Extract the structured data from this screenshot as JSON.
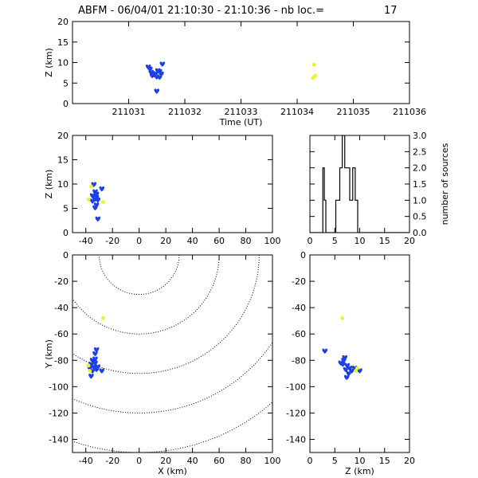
{
  "title": "ABFM - 06/04/01 21:10:30 - 21:10:36 - nb loc.=",
  "count": "17",
  "colors": {
    "blue": "#1f3fe8",
    "yellow": "#e8f52a",
    "axis": "#000000"
  },
  "chart_data": [
    {
      "id": "time_height",
      "type": "scatter",
      "xlabel": "Time (UT)",
      "ylabel": "Z (km)",
      "xlim": [
        211030,
        211036
      ],
      "ylim": [
        0,
        20
      ],
      "xticks": [
        "211031",
        "211032",
        "211033",
        "211034",
        "211035",
        "211036"
      ],
      "yticks": [
        "0",
        "5",
        "10",
        "15",
        "20"
      ],
      "series": [
        {
          "color": "blue",
          "points": [
            [
              211031.35,
              8.9
            ],
            [
              211031.4,
              7.6
            ],
            [
              211031.45,
              7.0
            ],
            [
              211031.5,
              6.5
            ],
            [
              211031.55,
              7.8
            ],
            [
              211031.6,
              9.6
            ],
            [
              211031.5,
              3.0
            ],
            [
              211031.42,
              6.8
            ],
            [
              211031.48,
              7.3
            ],
            [
              211031.58,
              7.2
            ],
            [
              211031.38,
              8.4
            ],
            [
              211031.52,
              8.0
            ],
            [
              211031.55,
              6.4
            ]
          ]
        },
        {
          "color": "yellow",
          "points": [
            [
              211034.3,
              9.5
            ],
            [
              211034.32,
              6.8
            ],
            [
              211034.28,
              6.3
            ]
          ]
        }
      ]
    },
    {
      "id": "x_height",
      "type": "scatter",
      "xlabel": "",
      "ylabel": "Z (km)",
      "xlim": [
        -50,
        100
      ],
      "ylim": [
        0,
        20
      ],
      "xticks": [
        "-40",
        "-20",
        "0",
        "20",
        "40",
        "60",
        "80",
        "100"
      ],
      "yticks": [
        "0",
        "5",
        "10",
        "15",
        "20"
      ],
      "series": [
        {
          "color": "blue",
          "points": [
            [
              -34,
              9.9
            ],
            [
              -33,
              8.4
            ],
            [
              -32,
              7.9
            ],
            [
              -34,
              7.3
            ],
            [
              -33,
              6.9
            ],
            [
              -35,
              6.5
            ],
            [
              -31,
              6.7
            ],
            [
              -32,
              5.7
            ],
            [
              -33,
              5.1
            ],
            [
              -31,
              2.8
            ],
            [
              -28,
              9.0
            ],
            [
              -35,
              7.6
            ],
            [
              -32,
              7.2
            ]
          ]
        },
        {
          "color": "yellow",
          "points": [
            [
              -36,
              9.5
            ],
            [
              -38,
              6.8
            ],
            [
              -27,
              6.3
            ]
          ]
        }
      ]
    },
    {
      "id": "height_histogram",
      "type": "line",
      "xlabel": "",
      "ylabel": "number of sources",
      "xlim": [
        0,
        20
      ],
      "ylim": [
        0,
        3
      ],
      "xticks": [
        "0",
        "5",
        "10",
        "15",
        "20"
      ],
      "yticks": [
        "0.0",
        "0.5",
        "1.0",
        "1.5",
        "2.0",
        "2.5",
        "3.0"
      ],
      "x": [
        0,
        2.6,
        2.6,
        2.9,
        2.9,
        3.2,
        3.2,
        5.2,
        5.2,
        6.0,
        6.0,
        6.5,
        6.5,
        7.0,
        7.0,
        8.0,
        8.0,
        8.6,
        8.6,
        9.1,
        9.1,
        9.6,
        9.6,
        20
      ],
      "y": [
        0,
        0,
        2,
        2,
        1,
        1,
        0,
        0,
        1,
        1,
        2,
        2,
        3,
        3,
        2,
        2,
        1,
        1,
        2,
        2,
        1,
        1,
        0,
        0
      ]
    },
    {
      "id": "plan_view",
      "type": "scatter",
      "xlabel": "X (km)",
      "ylabel": "Y (km)",
      "xlim": [
        -50,
        100
      ],
      "ylim": [
        -150,
        0
      ],
      "xticks": [
        "-40",
        "-20",
        "0",
        "20",
        "40",
        "60",
        "80",
        "100"
      ],
      "yticks": [
        "-140",
        "-120",
        "-100",
        "-80",
        "-60",
        "-40",
        "-20",
        "0"
      ],
      "contour_radii_km": [
        30,
        60,
        90,
        120,
        150,
        180
      ],
      "series": [
        {
          "color": "blue",
          "points": [
            [
              -32,
              -72
            ],
            [
              -33,
              -75
            ],
            [
              -35,
              -80
            ],
            [
              -33,
              -82
            ],
            [
              -34,
              -85
            ],
            [
              -37,
              -86
            ],
            [
              -35,
              -88
            ],
            [
              -32,
              -87
            ],
            [
              -28,
              -88
            ],
            [
              -36,
              -92
            ],
            [
              -33,
              -79
            ],
            [
              -31,
              -85
            ],
            [
              -36,
              -83
            ]
          ]
        },
        {
          "color": "yellow",
          "points": [
            [
              -27,
              -48
            ],
            [
              -38,
              -84
            ],
            [
              -37,
              -88
            ]
          ]
        }
      ]
    },
    {
      "id": "height_y",
      "type": "scatter",
      "xlabel": "Z (km)",
      "ylabel": "",
      "xlim": [
        0,
        20
      ],
      "ylim": [
        -150,
        0
      ],
      "xticks": [
        "0",
        "5",
        "10",
        "15",
        "20"
      ],
      "yticks": [
        "-140",
        "-120",
        "-100",
        "-80",
        "-60",
        "-40",
        "-20",
        "0"
      ],
      "series": [
        {
          "color": "blue",
          "points": [
            [
              3.0,
              -73
            ],
            [
              6.2,
              -82
            ],
            [
              6.8,
              -80
            ],
            [
              7.0,
              -78
            ],
            [
              7.5,
              -84
            ],
            [
              8.0,
              -86
            ],
            [
              7.2,
              -87
            ],
            [
              7.8,
              -90
            ],
            [
              7.4,
              -93
            ],
            [
              9.0,
              -86
            ],
            [
              10.0,
              -88
            ],
            [
              6.6,
              -83
            ],
            [
              8.4,
              -88
            ]
          ]
        },
        {
          "color": "yellow",
          "points": [
            [
              6.5,
              -48
            ],
            [
              9.5,
              -86
            ],
            [
              9.2,
              -88
            ]
          ]
        }
      ]
    }
  ]
}
